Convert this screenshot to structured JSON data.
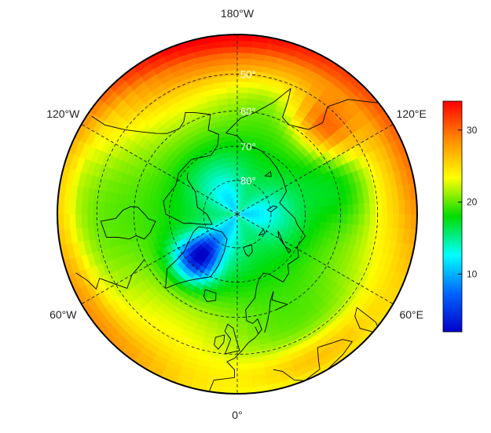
{
  "map": {
    "projection": "north-polar-stereographic",
    "longitude_labels": [
      {
        "id": "lon-180w",
        "text": "180°W",
        "angle": 180
      },
      {
        "id": "lon-120e",
        "text": "120°E",
        "angle": 120
      },
      {
        "id": "lon-60e",
        "text": "60°E",
        "angle": 60
      },
      {
        "id": "lon-0",
        "text": "0°",
        "angle": 0
      },
      {
        "id": "lon-60w",
        "text": "60°W",
        "angle": -60
      },
      {
        "id": "lon-120w",
        "text": "120°W",
        "angle": -120
      }
    ],
    "latitude_labels": [
      {
        "id": "lat-50",
        "text": "50°",
        "lat": 50
      },
      {
        "id": "lat-60",
        "text": "60°",
        "lat": 60
      },
      {
        "id": "lat-70",
        "text": "70°",
        "lat": 70
      },
      {
        "id": "lat-80",
        "text": "80°",
        "lat": 80
      }
    ],
    "graticule_latitudes": [
      50,
      60,
      70,
      80
    ],
    "graticule_longitudes": [
      0,
      60,
      120,
      180,
      240,
      300
    ],
    "outer_latitude": 40,
    "regions": [
      {
        "name": "greenland-ice-sheet",
        "value": 4
      },
      {
        "name": "arctic-ocean-center",
        "value": 13
      },
      {
        "name": "outer-ring-pacific",
        "value": 29
      },
      {
        "name": "east-siberia-coast",
        "value": 32
      },
      {
        "name": "central-europe",
        "value": 28
      }
    ]
  },
  "colorbar": {
    "min": 2,
    "max": 34,
    "ticks": [
      {
        "value": 10,
        "label": "10"
      },
      {
        "value": 20,
        "label": "20"
      },
      {
        "value": 30,
        "label": "30"
      }
    ],
    "colors": [
      "#0000c8",
      "#0064ff",
      "#00ffff",
      "#00dc00",
      "#ffff00",
      "#ff8c00",
      "#ff0000"
    ]
  }
}
